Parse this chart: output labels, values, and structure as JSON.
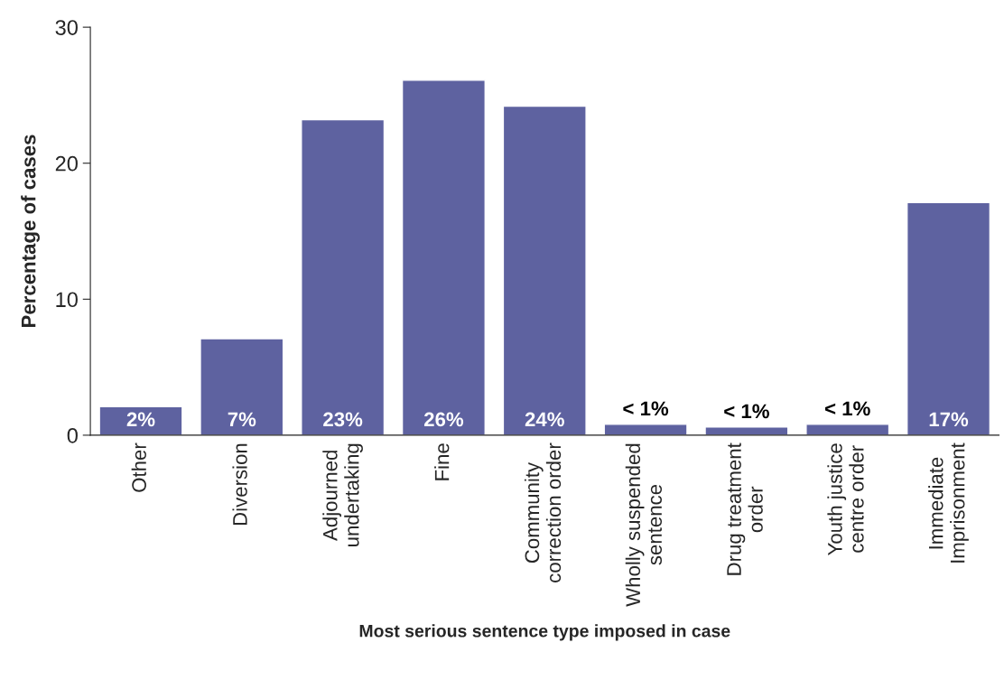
{
  "chart_data": {
    "type": "bar",
    "xlabel": "Most serious sentence type imposed in case",
    "ylabel": "Percentage of cases",
    "categories": [
      "Other",
      "Diversion",
      "Adjourned\nundertaking",
      "Fine",
      "Community\ncorrection order",
      "Wholly suspended\nsentence",
      "Drug treatment\norder",
      "Youth justice\ncentre order",
      "Immediate\nImprisonment"
    ],
    "values": [
      2.1,
      7.1,
      23.2,
      26.1,
      24.2,
      0.8,
      0.6,
      0.8,
      17.1
    ],
    "value_labels": [
      "2%",
      "7%",
      "23%",
      "26%",
      "24%",
      "< 1%",
      "< 1%",
      "< 1%",
      "17%"
    ],
    "color": "#5e62a0",
    "ylim": [
      0,
      30
    ],
    "yticks": [
      0,
      10,
      20,
      30
    ],
    "grid": false,
    "legend": false
  }
}
